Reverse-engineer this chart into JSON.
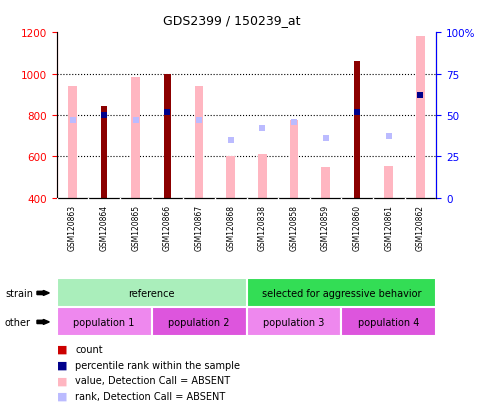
{
  "title": "GDS2399 / 150239_at",
  "samples": [
    "GSM120863",
    "GSM120864",
    "GSM120865",
    "GSM120866",
    "GSM120867",
    "GSM120868",
    "GSM120838",
    "GSM120858",
    "GSM120859",
    "GSM120860",
    "GSM120861",
    "GSM120862"
  ],
  "count_values": [
    null,
    845,
    null,
    1000,
    null,
    null,
    null,
    null,
    null,
    1060,
    null,
    null
  ],
  "count_is_dark": [
    false,
    true,
    false,
    true,
    false,
    false,
    false,
    false,
    false,
    true,
    false,
    false
  ],
  "absent_bar_values": [
    940,
    null,
    985,
    null,
    940,
    600,
    610,
    775,
    550,
    null,
    555,
    1180
  ],
  "percentile_rank": [
    null,
    50,
    null,
    52,
    null,
    null,
    null,
    null,
    null,
    52,
    null,
    62
  ],
  "absent_rank": [
    47,
    null,
    47,
    null,
    47,
    35,
    42,
    46,
    36,
    null,
    37,
    62
  ],
  "ylim_left": [
    400,
    1200
  ],
  "ylim_right": [
    0,
    100
  ],
  "left_ticks": [
    400,
    600,
    800,
    1000,
    1200
  ],
  "right_ticks": [
    0,
    25,
    50,
    75,
    100
  ],
  "grid_lines": [
    600,
    800,
    1000
  ],
  "strain_groups": [
    {
      "label": "reference",
      "start": 0,
      "end": 6,
      "color": "#AAEEBB"
    },
    {
      "label": "selected for aggressive behavior",
      "start": 6,
      "end": 12,
      "color": "#33DD55"
    }
  ],
  "other_groups": [
    {
      "label": "population 1",
      "start": 0,
      "end": 3,
      "color": "#EE88EE"
    },
    {
      "label": "population 2",
      "start": 3,
      "end": 6,
      "color": "#DD55DD"
    },
    {
      "label": "population 3",
      "start": 6,
      "end": 9,
      "color": "#EE88EE"
    },
    {
      "label": "population 4",
      "start": 9,
      "end": 12,
      "color": "#DD55DD"
    }
  ],
  "color_count_dark": "#8B0000",
  "color_absent_bar": "#FFB6C1",
  "color_percentile": "#00008B",
  "color_absent_rank": "#BBBBFF",
  "legend_items": [
    {
      "color": "#CC0000",
      "label": "count"
    },
    {
      "color": "#00008B",
      "label": "percentile rank within the sample"
    },
    {
      "color": "#FFB6C1",
      "label": "value, Detection Call = ABSENT"
    },
    {
      "color": "#BBBBFF",
      "label": "rank, Detection Call = ABSENT"
    }
  ]
}
